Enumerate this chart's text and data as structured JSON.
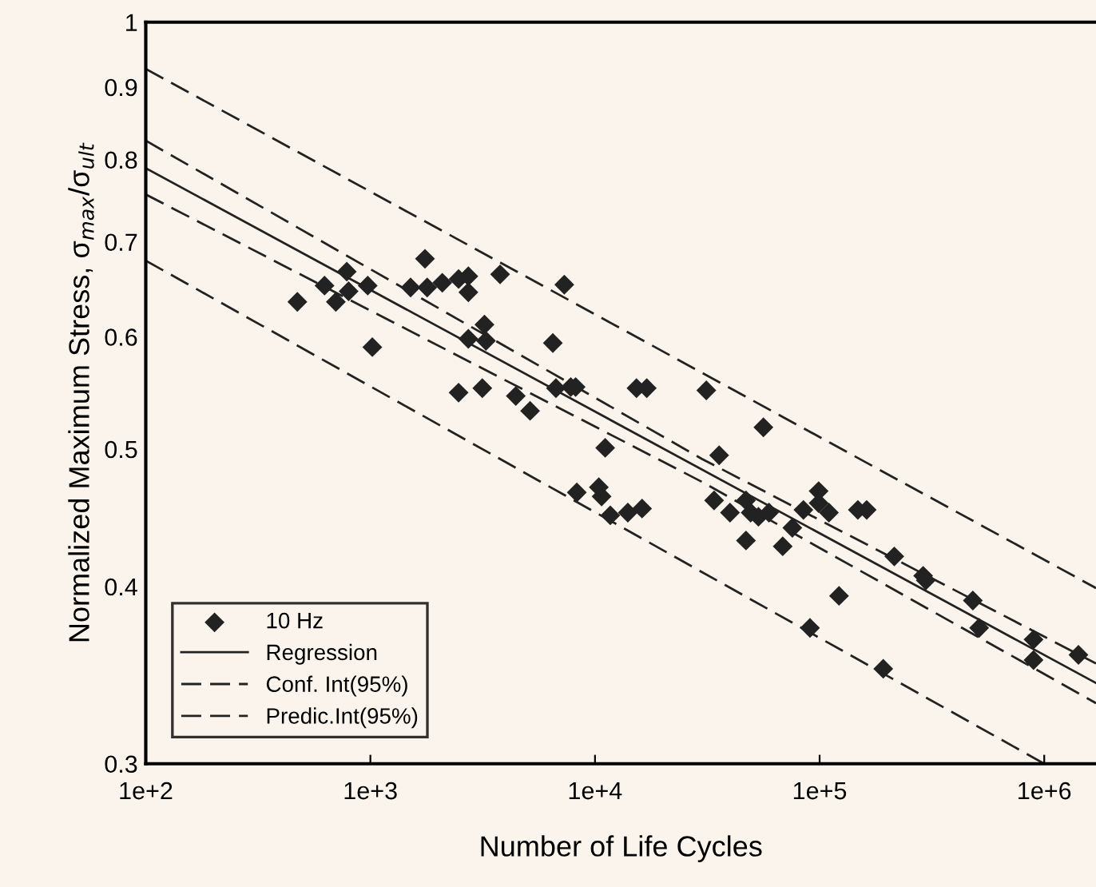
{
  "chart_data": {
    "type": "scatter",
    "xlabel": "Number of Life Cycles",
    "ylabel": "Normalized Maximum Stress, σ$_{max}$/σ$_{ult}$",
    "log": "xy",
    "xlim": [
      100,
      1700000
    ],
    "xticks": [
      {
        "value": 100,
        "label": "1e+2"
      },
      {
        "value": 1000,
        "label": "1e+3"
      },
      {
        "value": 10000,
        "label": "1e+4"
      },
      {
        "value": 100000,
        "label": "1e+5"
      },
      {
        "value": 1000000,
        "label": "1e+6"
      }
    ],
    "ylim": [
      0.3,
      1
    ],
    "yticks": [
      0.3,
      0.4,
      0.5,
      0.6,
      0.7,
      0.8,
      0.9,
      1
    ],
    "grid": false,
    "legend": "bottom left",
    "series": [
      {
        "name": "10 Hz",
        "marker": "diamond",
        "color": "#222222",
        "x": [
          473,
          625,
          702,
          785,
          800,
          973,
          1020,
          1750,
          1510,
          1790,
          2090,
          2470,
          2730,
          2730,
          3780,
          2730,
          3220,
          3270,
          2470,
          3150,
          4440,
          5140,
          6490,
          6700,
          7800,
          7300,
          8200,
          15300,
          17000,
          31300,
          56200,
          11100,
          8300,
          10400,
          10700,
          11700,
          14000,
          16200,
          35700,
          33900,
          39900,
          47000,
          49300,
          53400,
          59500,
          47000,
          68500,
          75600,
          84700,
          99000,
          99000,
          110000,
          148000,
          162000,
          122000,
          90600,
          215000,
          289000,
          297000,
          192000,
          481000,
          513000,
          896000,
          896000,
          1420000
        ],
        "values": [
          0.635,
          0.652,
          0.635,
          0.667,
          0.646,
          0.652,
          0.59,
          0.681,
          0.65,
          0.65,
          0.655,
          0.659,
          0.662,
          0.645,
          0.664,
          0.598,
          0.612,
          0.596,
          0.548,
          0.552,
          0.545,
          0.532,
          0.594,
          0.552,
          0.553,
          0.653,
          0.553,
          0.552,
          0.552,
          0.55,
          0.518,
          0.501,
          0.466,
          0.47,
          0.463,
          0.449,
          0.451,
          0.454,
          0.495,
          0.46,
          0.451,
          0.46,
          0.451,
          0.448,
          0.451,
          0.431,
          0.427,
          0.44,
          0.453,
          0.467,
          0.458,
          0.451,
          0.453,
          0.453,
          0.394,
          0.374,
          0.42,
          0.407,
          0.404,
          0.35,
          0.391,
          0.374,
          0.367,
          0.355,
          0.358
        ]
      },
      {
        "name": "Regression",
        "type": "line",
        "line_style": "solid",
        "color": "#222222",
        "x": [
          100,
          1700000
        ],
        "values": [
          0.789,
          0.342
        ]
      },
      {
        "name": "Conf. Int(95%)",
        "type": "line",
        "line_style": "dashed",
        "color": "#222222",
        "x": [
          100,
          30000,
          1700000
        ],
        "values": [
          0.825,
          0.492,
          0.353
        ]
      },
      {
        "type": "line",
        "line_style": "dashed",
        "color": "#222222",
        "x": [
          100,
          30000,
          1700000
        ],
        "values": [
          0.756,
          0.474,
          0.331
        ]
      },
      {
        "name": "Predic.Int(95%)",
        "type": "line",
        "line_style": "dashed",
        "color": "#222222",
        "x": [
          100,
          1700000
        ],
        "values": [
          0.927,
          0.399
        ]
      },
      {
        "type": "line",
        "line_style": "dashed",
        "color": "#222222",
        "x": [
          100,
          1000000
        ],
        "values": [
          0.679,
          0.3
        ]
      }
    ]
  }
}
